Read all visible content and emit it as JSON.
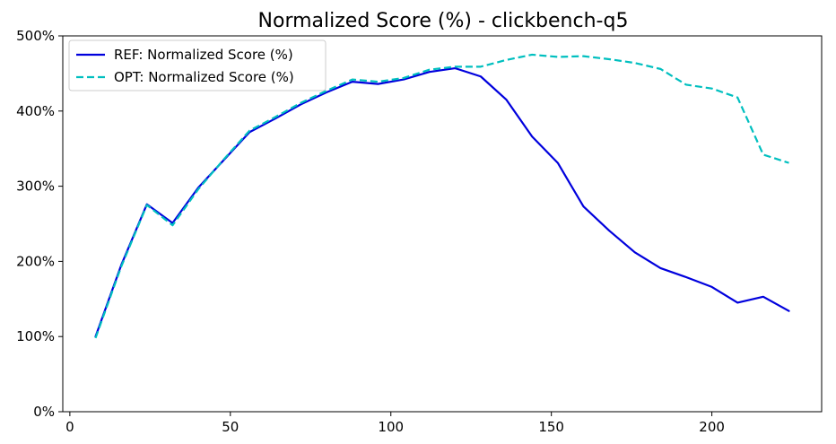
{
  "chart_data": {
    "type": "line",
    "title": "Normalized Score (%) - clickbench-q5",
    "xlabel": "",
    "ylabel": "",
    "xlim": [
      -2.2,
      234.2
    ],
    "ylim": [
      0,
      500
    ],
    "x_ticks": [
      0,
      50,
      100,
      150,
      200
    ],
    "x_tick_labels": [
      "0",
      "50",
      "100",
      "150",
      "200"
    ],
    "y_ticks": [
      0,
      100,
      200,
      300,
      400,
      500
    ],
    "y_tick_labels": [
      "0%",
      "100%",
      "200%",
      "300%",
      "400%",
      "500%"
    ],
    "grid": false,
    "legend_position": "upper-left",
    "x": [
      8,
      16,
      24,
      32,
      40,
      48,
      56,
      64,
      72,
      80,
      88,
      96,
      104,
      112,
      120,
      128,
      136,
      144,
      152,
      160,
      168,
      176,
      184,
      192,
      200,
      208,
      216,
      224
    ],
    "series": [
      {
        "name": "REF: Normalized Score (%)",
        "color": "#0000dd",
        "style": "solid",
        "values": [
          100,
          195,
          276,
          251,
          298,
          335,
          372,
          390,
          409,
          425,
          439,
          436,
          442,
          452,
          457,
          446,
          415,
          366,
          331,
          273,
          241,
          212,
          191,
          179,
          166,
          145,
          153,
          134
        ]
      },
      {
        "name": "OPT: Normalized Score (%)",
        "color": "#00bfbf",
        "style": "dashed",
        "values": [
          98,
          193,
          275,
          248,
          296,
          336,
          374,
          392,
          411,
          427,
          442,
          439,
          444,
          455,
          459,
          459,
          468,
          475,
          472,
          473,
          469,
          464,
          456,
          435,
          430,
          418,
          342,
          331
        ]
      }
    ]
  }
}
